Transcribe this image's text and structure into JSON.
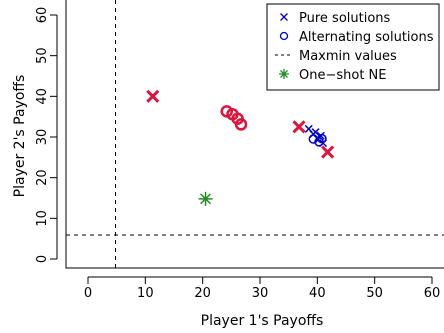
{
  "chart_data": {
    "type": "scatter",
    "xlabel": "Player 1's Payoffs",
    "ylabel": "Player 2's Payoffs",
    "xlim": [
      0,
      60
    ],
    "ylim": [
      0,
      60
    ],
    "x_ticks": [
      "0",
      "10",
      "20",
      "30",
      "40",
      "50",
      "60"
    ],
    "y_ticks": [
      "0",
      "10",
      "20",
      "30",
      "40",
      "50",
      "60"
    ],
    "legend_position": "top-right",
    "grid": false,
    "legend": [
      {
        "label": "Pure solutions",
        "marker": "x",
        "color": "#0000CD"
      },
      {
        "label": "Alternating solutions",
        "marker": "circle",
        "color": "#0000CD"
      },
      {
        "label": "Maxmin values",
        "marker": "dashed-line",
        "color": "#000000"
      },
      {
        "label": "One−shot NE",
        "marker": "asterisk",
        "color": "#228B22"
      }
    ],
    "series": [
      {
        "name": "Pure solutions",
        "marker": "x",
        "color": "#0000CD",
        "points": [
          [
            38.5,
            32
          ],
          [
            39.3,
            30.7
          ],
          [
            40.1,
            29.5
          ],
          [
            39.7,
            31.2
          ],
          [
            41,
            28.5
          ],
          [
            40.6,
            30.3
          ]
        ]
      },
      {
        "name": "Alternating solutions",
        "marker": "circle",
        "color": "#0000CD",
        "points": [
          [
            39.3,
            29.5
          ],
          [
            40.3,
            28.8
          ],
          [
            40.8,
            29.6
          ]
        ]
      },
      {
        "name": "",
        "marker": "x",
        "color": "#DC143C",
        "points": [
          [
            11.3,
            40
          ],
          [
            36.8,
            32.5
          ],
          [
            41.8,
            26.3
          ]
        ]
      },
      {
        "name": "",
        "marker": "circle",
        "color": "#DC143C",
        "points": [
          [
            24.2,
            36.3
          ],
          [
            25.2,
            35.6
          ],
          [
            26.1,
            34.5
          ],
          [
            26.7,
            33.1
          ]
        ]
      },
      {
        "name": "One−shot NE",
        "marker": "asterisk",
        "color": "#228B22",
        "points": [
          [
            20.5,
            14.8
          ]
        ]
      }
    ],
    "reference_lines": {
      "maxmin_x": 4.8,
      "maxmin_y": 5.9
    }
  }
}
